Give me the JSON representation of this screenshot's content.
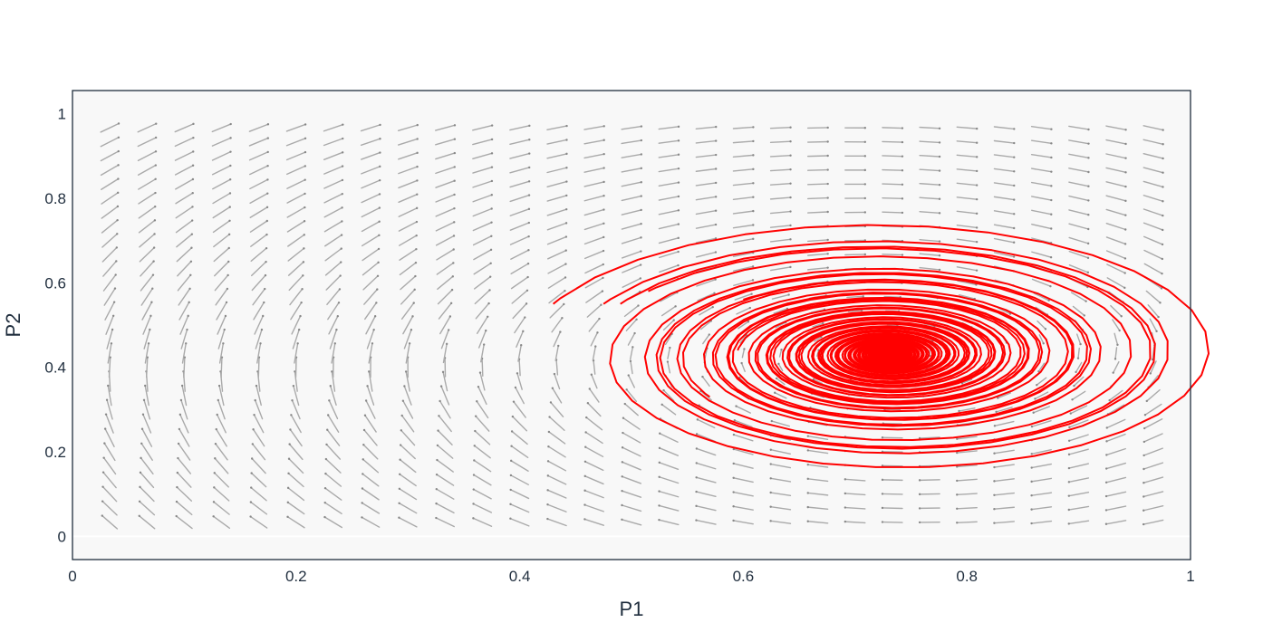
{
  "chart_data": {
    "type": "quiver-trajectory",
    "title": "",
    "xlabel": "P1",
    "ylabel": "P2",
    "xlim": [
      0,
      1
    ],
    "ylim": [
      -0.055,
      1.055
    ],
    "xticks": [
      0,
      0.2,
      0.4,
      0.6,
      0.8,
      1
    ],
    "xtick_labels": [
      "0",
      "0.2",
      "0.4",
      "0.6",
      "0.8",
      "1"
    ],
    "yticks": [
      0,
      0.2,
      0.4,
      0.6,
      0.8,
      1
    ],
    "ytick_labels": [
      "0",
      "0.2",
      "0.4",
      "0.6",
      "0.8",
      "1"
    ],
    "grid": false,
    "legend": "none",
    "plot_background": "#f8f8f8",
    "frame_color": "#1f2d3d",
    "arrow_color": "#aaaaaa",
    "trajectory_color": "#ff0000",
    "vector_field": {
      "x_range": [
        0.0333,
        0.9667
      ],
      "y_range": [
        0.0333,
        0.9667
      ],
      "grid_size": 29,
      "equilibrium": [
        0.73,
        0.43
      ]
    },
    "trajectories": [
      {
        "start": [
          0.43,
          0.55
        ]
      },
      {
        "start": [
          0.475,
          0.55
        ]
      },
      {
        "start": [
          0.49,
          0.55
        ]
      },
      {
        "start": [
          0.515,
          0.58
        ]
      },
      {
        "start": [
          0.6,
          0.56
        ]
      },
      {
        "start": [
          0.57,
          0.33
        ]
      },
      {
        "start": [
          0.595,
          0.44
        ]
      }
    ]
  }
}
